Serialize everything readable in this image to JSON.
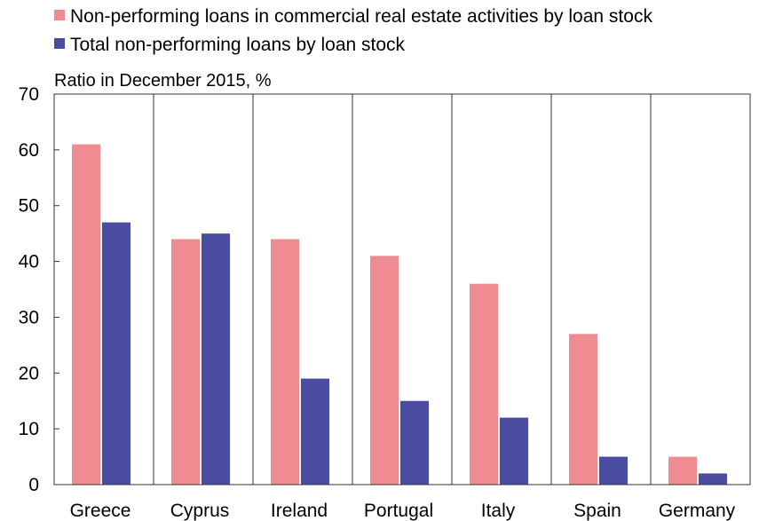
{
  "chart_data": {
    "type": "bar",
    "units_label": "Ratio in December 2015, %",
    "categories": [
      "Greece",
      "Cyprus",
      "Ireland",
      "Portugal",
      "Italy",
      "Spain",
      "Germany"
    ],
    "series": [
      {
        "name": "Non-performing loans in commercial real estate activities by loan stock",
        "color": "#ee8c92",
        "values": [
          61,
          44,
          44,
          41,
          36,
          27,
          5
        ]
      },
      {
        "name": "Total non-performing loans by loan stock",
        "color": "#4a4d9f",
        "values": [
          47,
          45,
          19,
          15,
          12,
          5,
          2
        ]
      }
    ],
    "yticks": [
      0,
      10,
      20,
      30,
      40,
      50,
      60,
      70
    ],
    "ylim": [
      0,
      70
    ],
    "grid": "vertical category separators",
    "legend_position": "top"
  }
}
